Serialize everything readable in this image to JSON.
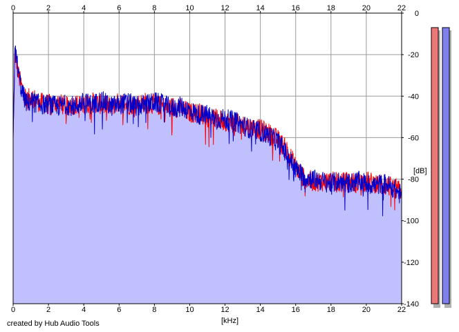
{
  "footer": {
    "credit": "created by Hub Audio Tools"
  },
  "chart_data": {
    "type": "area",
    "xlabel": "[kHz]",
    "ylabel": "[dB]",
    "xlim": [
      0,
      22
    ],
    "ylim": [
      -140,
      0
    ],
    "x_ticks": [
      0,
      2,
      4,
      6,
      8,
      10,
      12,
      14,
      16,
      18,
      20,
      22
    ],
    "y_ticks": [
      0,
      -20,
      -40,
      -60,
      -80,
      -100,
      -120,
      -140
    ],
    "x_ticks_on": [
      "bottom",
      "top"
    ],
    "y_ticks_on": "right",
    "grid": true,
    "fill_color": "#c0c0ff",
    "series": [
      {
        "channel": "left",
        "color": "#ff0000",
        "x": [
          0,
          0.1,
          0.2,
          0.3,
          0.5,
          0.8,
          1,
          1.5,
          2,
          2.5,
          3,
          3.5,
          4,
          4.5,
          5,
          5.5,
          6,
          6.5,
          7,
          7.5,
          8,
          8.5,
          9,
          9.5,
          10,
          10.5,
          11,
          11.5,
          12,
          12.5,
          13,
          13.5,
          14,
          14.5,
          15,
          15.5,
          16,
          16.5,
          17,
          17.5,
          18,
          18.5,
          19,
          19.5,
          20,
          20.5,
          21,
          21.5,
          22
        ],
        "y": [
          -60,
          -20,
          -24,
          -30,
          -36,
          -42,
          -40,
          -43,
          -44,
          -43,
          -45,
          -44,
          -44,
          -43,
          -44,
          -45,
          -43,
          -44,
          -44,
          -43,
          -44,
          -45,
          -45,
          -46,
          -48,
          -48,
          -50,
          -51,
          -52,
          -53,
          -54,
          -55,
          -56,
          -58,
          -61,
          -66,
          -74,
          -80,
          -81,
          -81,
          -81,
          -82,
          -81,
          -82,
          -81,
          -82,
          -83,
          -84,
          -86
        ]
      },
      {
        "channel": "right",
        "color": "#0000cc",
        "x": [
          0,
          0.1,
          0.2,
          0.3,
          0.5,
          0.8,
          1,
          1.5,
          2,
          2.5,
          3,
          3.5,
          4,
          4.5,
          5,
          5.5,
          6,
          6.5,
          7,
          7.5,
          8,
          8.5,
          9,
          9.5,
          10,
          10.5,
          11,
          11.5,
          12,
          12.5,
          13,
          13.5,
          14,
          14.5,
          15,
          15.5,
          16,
          16.5,
          17,
          17.5,
          18,
          18.5,
          19,
          19.5,
          20,
          20.5,
          21,
          21.5,
          22
        ],
        "y": [
          -60,
          -18,
          -22,
          -29,
          -38,
          -44,
          -42,
          -44,
          -44,
          -45,
          -44,
          -45,
          -43,
          -44,
          -42,
          -45,
          -44,
          -43,
          -45,
          -44,
          -43,
          -44,
          -46,
          -45,
          -47,
          -49,
          -49,
          -51,
          -51,
          -52,
          -54,
          -56,
          -57,
          -59,
          -62,
          -68,
          -75,
          -79,
          -80,
          -81,
          -82,
          -81,
          -82,
          -81,
          -82,
          -83,
          -82,
          -84,
          -88
        ]
      }
    ]
  },
  "meters": [
    {
      "channel": "left",
      "color": "#ee7777"
    },
    {
      "channel": "right",
      "color": "#8080ee"
    }
  ]
}
